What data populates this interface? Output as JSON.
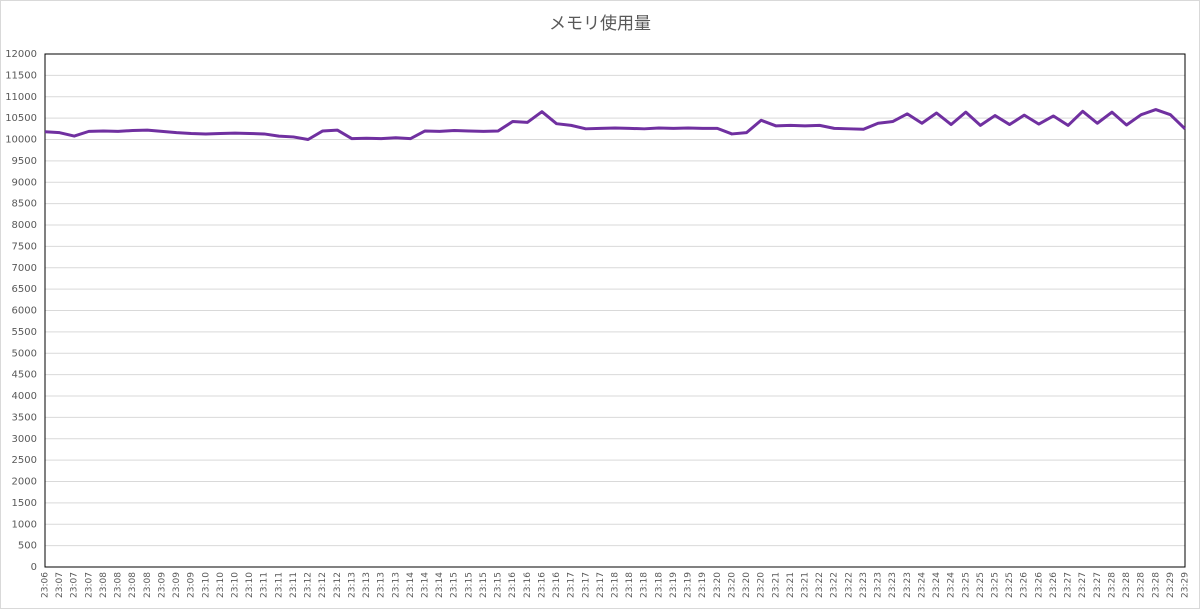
{
  "chart_data": {
    "type": "line",
    "title": "メモリ使用量",
    "categories": [
      "23:06",
      "23:07",
      "23:07",
      "23:07",
      "23:08",
      "23:08",
      "23:08",
      "23:08",
      "23:09",
      "23:09",
      "23:09",
      "23:10",
      "23:10",
      "23:10",
      "23:10",
      "23:11",
      "23:11",
      "23:11",
      "23:12",
      "23:12",
      "23:12",
      "23:13",
      "23:13",
      "23:13",
      "23:13",
      "23:14",
      "23:14",
      "23:14",
      "23:15",
      "23:15",
      "23:15",
      "23:15",
      "23:16",
      "23:16",
      "23:16",
      "23:16",
      "23:17",
      "23:17",
      "23:17",
      "23:18",
      "23:18",
      "23:18",
      "23:18",
      "23:19",
      "23:19",
      "23:19",
      "23:20",
      "23:20",
      "23:20",
      "23:20",
      "23:21",
      "23:21",
      "23:21",
      "23:22",
      "23:22",
      "23:22",
      "23:23",
      "23:23",
      "23:23",
      "23:23",
      "23:24",
      "23:24",
      "23:24",
      "23:25",
      "23:25",
      "23:25",
      "23:25",
      "23:26",
      "23:26",
      "23:26",
      "23:27",
      "23:27",
      "23:27",
      "23:28",
      "23:28",
      "23:28",
      "23:28",
      "23:29",
      "23:29"
    ],
    "series": [
      {
        "name": "メモリ使用量",
        "color": "#7030a0",
        "values": [
          10180,
          10160,
          10080,
          10190,
          10200,
          10190,
          10210,
          10220,
          10190,
          10160,
          10140,
          10130,
          10140,
          10150,
          10140,
          10130,
          10080,
          10060,
          10000,
          10200,
          10220,
          10020,
          10030,
          10020,
          10040,
          10020,
          10200,
          10190,
          10210,
          10200,
          10190,
          10200,
          10420,
          10400,
          10650,
          10370,
          10330,
          10250,
          10260,
          10270,
          10260,
          10250,
          10270,
          10260,
          10270,
          10260,
          10260,
          10130,
          10160,
          10450,
          10320,
          10330,
          10320,
          10330,
          10260,
          10250,
          10240,
          10380,
          10420,
          10600,
          10380,
          10620,
          10350,
          10640,
          10330,
          10560,
          10350,
          10570,
          10360,
          10550,
          10330,
          10660,
          10380,
          10640,
          10340,
          10580,
          10700,
          10580,
          10250
        ]
      }
    ],
    "ylim": [
      0,
      12000
    ],
    "yticks": [
      0,
      500,
      1000,
      1500,
      2000,
      2500,
      3000,
      3500,
      4000,
      4500,
      5000,
      5500,
      6000,
      6500,
      7000,
      7500,
      8000,
      8500,
      9000,
      9500,
      10000,
      10500,
      11000,
      11500,
      12000
    ],
    "grid": true
  }
}
